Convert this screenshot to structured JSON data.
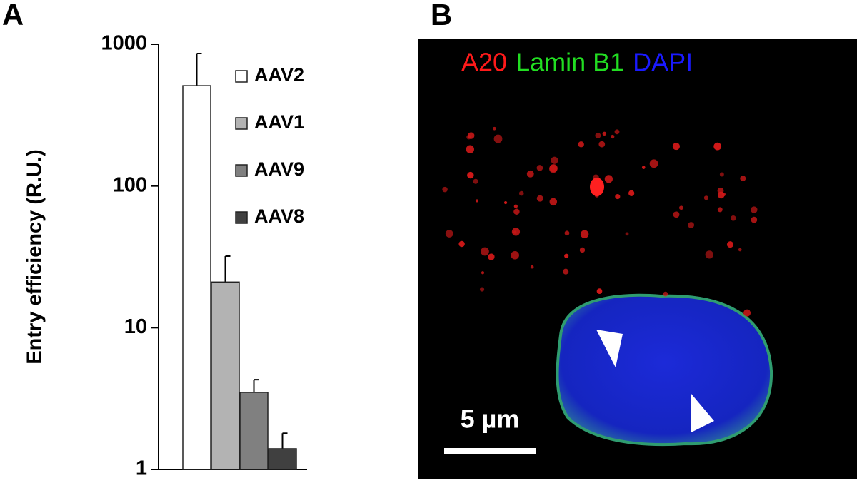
{
  "panel_labels": {
    "a": "A",
    "b": "B"
  },
  "chart_data": {
    "type": "bar",
    "y_label": "Entry efficiency (R.U.)",
    "log_scale": true,
    "categories": [
      "AAV2",
      "AAV1",
      "AAV9",
      "AAV8"
    ],
    "values": [
      510,
      21,
      3.5,
      1.4
    ],
    "errors": [
      350,
      11,
      0.8,
      0.4
    ],
    "colors": [
      "#ffffff",
      "#b3b3b3",
      "#808080",
      "#404040"
    ],
    "ylim": [
      1,
      1000
    ],
    "yticks": [
      1,
      10,
      100,
      1000
    ]
  },
  "image": {
    "channels": [
      {
        "name": "A20",
        "color": "#ff1a1a"
      },
      {
        "name": "Lamin B1",
        "color": "#22dd22"
      },
      {
        "name": "DAPI",
        "color": "#1a1aff"
      }
    ],
    "scale_bar": "5 µm"
  }
}
